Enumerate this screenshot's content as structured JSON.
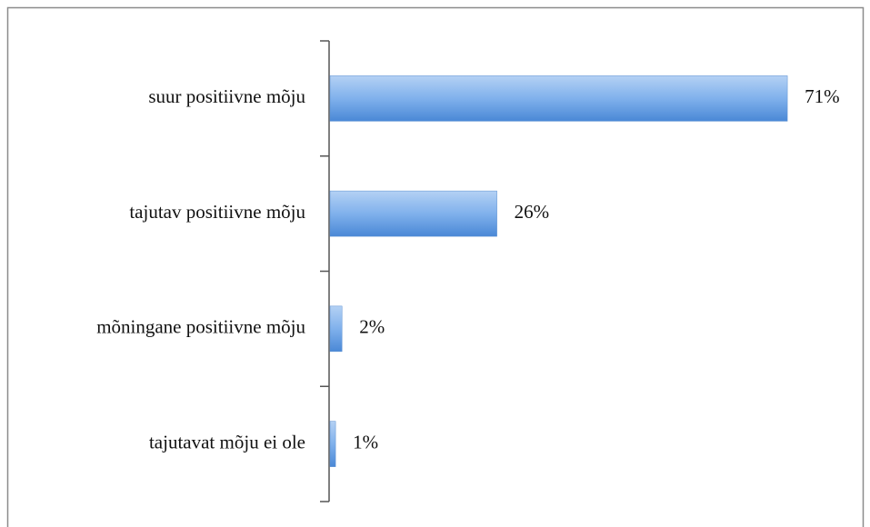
{
  "chart_data": {
    "type": "barh",
    "categories": [
      "suur positiivne mõju",
      "tajutav positiivne mõju",
      "mõningane positiivne mõju",
      "tajutavat mõju ei ole"
    ],
    "values": [
      71,
      26,
      2,
      1
    ],
    "value_labels": [
      "71%",
      "26%",
      "2%",
      "1%"
    ],
    "color": "#6fa3e6"
  }
}
